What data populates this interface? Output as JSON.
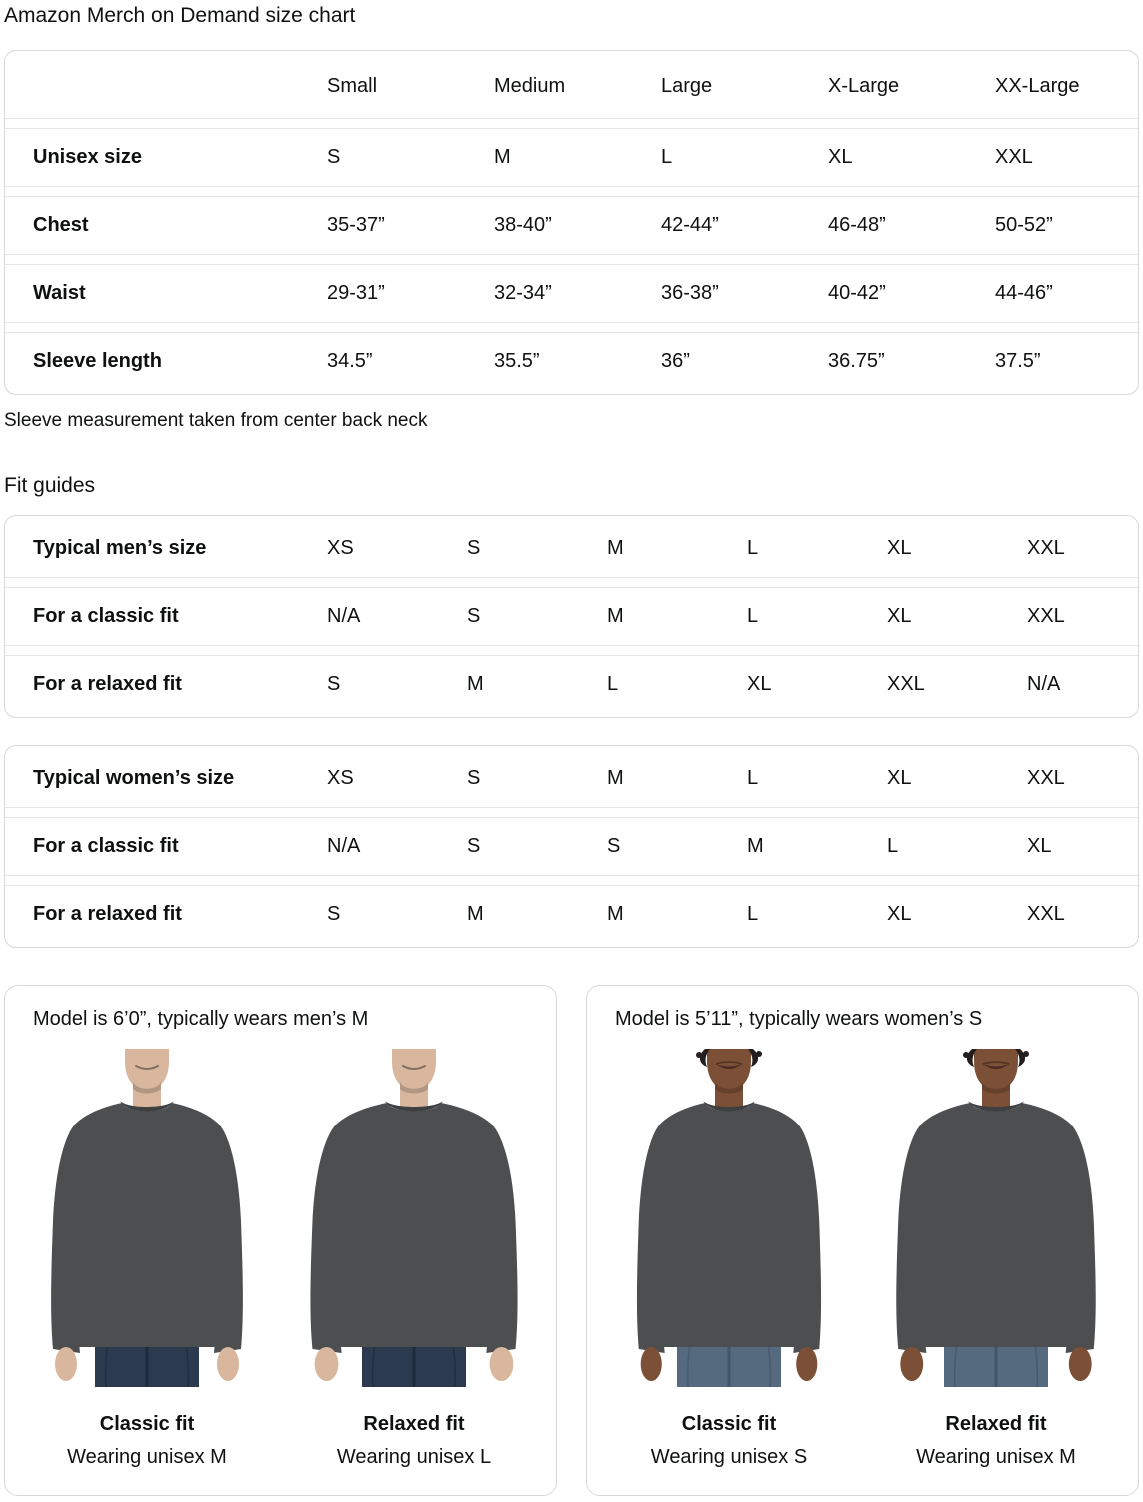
{
  "page": {
    "title": "Amazon Merch on Demand size chart",
    "note": "Sleeve measurement taken from center back neck",
    "fit_guides_heading": "Fit guides"
  },
  "size_chart": {
    "columns": [
      "Small",
      "Medium",
      "Large",
      "X-Large",
      "XX-Large"
    ],
    "rows": [
      {
        "label": "Unisex size",
        "values": [
          "S",
          "M",
          "L",
          "XL",
          "XXL"
        ]
      },
      {
        "label": "Chest",
        "values": [
          "35-37”",
          "38-40”",
          "42-44”",
          "46-48”",
          "50-52”"
        ]
      },
      {
        "label": "Waist",
        "values": [
          "29-31”",
          "32-34”",
          "36-38”",
          "40-42”",
          "44-46”"
        ]
      },
      {
        "label": "Sleeve length",
        "values": [
          "34.5”",
          "35.5”",
          "36”",
          "36.75”",
          "37.5”"
        ]
      }
    ]
  },
  "fit_guide_mens": {
    "rows": [
      {
        "label": "Typical men’s size",
        "values": [
          "XS",
          "S",
          "M",
          "L",
          "XL",
          "XXL"
        ]
      },
      {
        "label": "For a classic fit",
        "values": [
          "N/A",
          "S",
          "M",
          "L",
          "XL",
          "XXL"
        ]
      },
      {
        "label": "For a relaxed fit",
        "values": [
          "S",
          "M",
          "L",
          "XL",
          "XXL",
          "N/A"
        ]
      }
    ]
  },
  "fit_guide_womens": {
    "rows": [
      {
        "label": "Typical women’s size",
        "values": [
          "XS",
          "S",
          "M",
          "L",
          "XL",
          "XXL"
        ]
      },
      {
        "label": "For a classic fit",
        "values": [
          "N/A",
          "S",
          "S",
          "M",
          "L",
          "XL"
        ]
      },
      {
        "label": "For a relaxed fit",
        "values": [
          "S",
          "M",
          "M",
          "L",
          "XL",
          "XXL"
        ]
      }
    ]
  },
  "model_cards": [
    {
      "title": "Model is 6’0”, typically wears men’s M",
      "model": "man",
      "photos": [
        {
          "fit": "classic",
          "fit_label": "Classic fit",
          "caption": "Wearing unisex M"
        },
        {
          "fit": "relaxed",
          "fit_label": "Relaxed fit",
          "caption": "Wearing unisex L"
        }
      ]
    },
    {
      "title": "Model is 5’11”, typically wears women’s S",
      "model": "woman",
      "photos": [
        {
          "fit": "classic",
          "fit_label": "Classic fit",
          "caption": "Wearing unisex S"
        },
        {
          "fit": "relaxed",
          "fit_label": "Relaxed fit",
          "caption": "Wearing unisex M"
        }
      ]
    }
  ],
  "colors": {
    "text": "#0f1111",
    "table_border": "#d5d9d9",
    "row_divider": "#e3e6e6",
    "shirt": "#4d4e50",
    "shirt_collar": "#3e3f41",
    "jeans_man": "#2c3a4f",
    "jeans_man_dark": "#1f2b3c",
    "jeans_woman": "#55697f",
    "jeans_woman_dark": "#435669",
    "skin_man": "#d9b79f",
    "skin_woman": "#7c5036",
    "hair_woman": "#241f1e"
  }
}
